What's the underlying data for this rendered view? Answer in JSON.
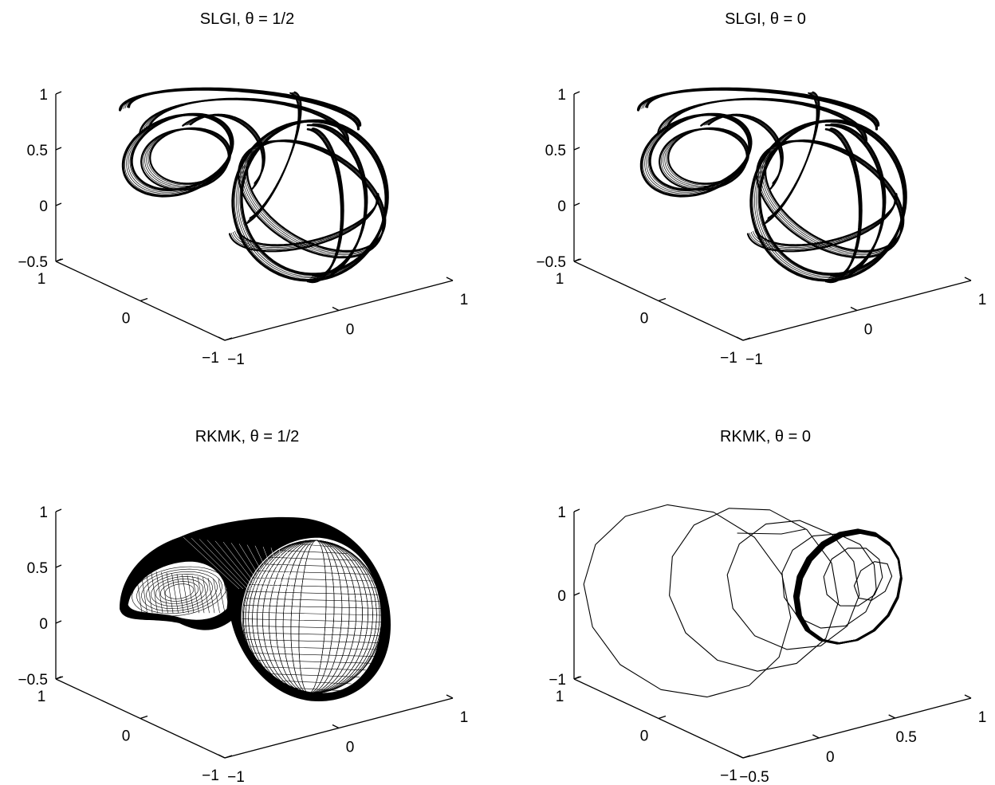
{
  "chart_data": [
    {
      "type": "line3d",
      "title": "SLGI, θ = 1/2",
      "render": "dense",
      "xticks": [
        "−1",
        "0",
        "1"
      ],
      "yticks": [
        "−1",
        "0",
        "1"
      ],
      "zticks": [
        "−0.5",
        "0",
        "0.5",
        "1"
      ],
      "xlim": [
        -1,
        1
      ],
      "ylim": [
        -1,
        1
      ],
      "zlim": [
        -0.5,
        1
      ],
      "grid": false
    },
    {
      "type": "line3d",
      "title": "SLGI, θ = 0",
      "render": "dense",
      "xticks": [
        "−1",
        "0",
        "1"
      ],
      "yticks": [
        "−1",
        "0",
        "1"
      ],
      "zticks": [
        "−0.5",
        "0",
        "0.5",
        "1"
      ],
      "xlim": [
        -1,
        1
      ],
      "ylim": [
        -1,
        1
      ],
      "zlim": [
        -0.5,
        1
      ],
      "grid": false
    },
    {
      "type": "line3d",
      "title": "RKMK, θ = 1/2",
      "render": "surface",
      "xticks": [
        "−1",
        "0",
        "1"
      ],
      "yticks": [
        "−1",
        "0",
        "1"
      ],
      "zticks": [
        "−0.5",
        "0",
        "0.5",
        "1"
      ],
      "xlim": [
        -1,
        1
      ],
      "ylim": [
        -1,
        1
      ],
      "zlim": [
        -0.5,
        1
      ],
      "grid": false
    },
    {
      "type": "line3d",
      "title": "RKMK, θ = 0",
      "render": "sparse",
      "xticks": [
        "−0.5",
        "0",
        "0.5",
        "1"
      ],
      "yticks": [
        "−1",
        "0",
        "1"
      ],
      "zticks": [
        "−1",
        "0",
        "1"
      ],
      "xlim": [
        -0.5,
        1
      ],
      "ylim": [
        -1,
        1
      ],
      "zlim": [
        -1,
        1
      ],
      "grid": false
    }
  ]
}
